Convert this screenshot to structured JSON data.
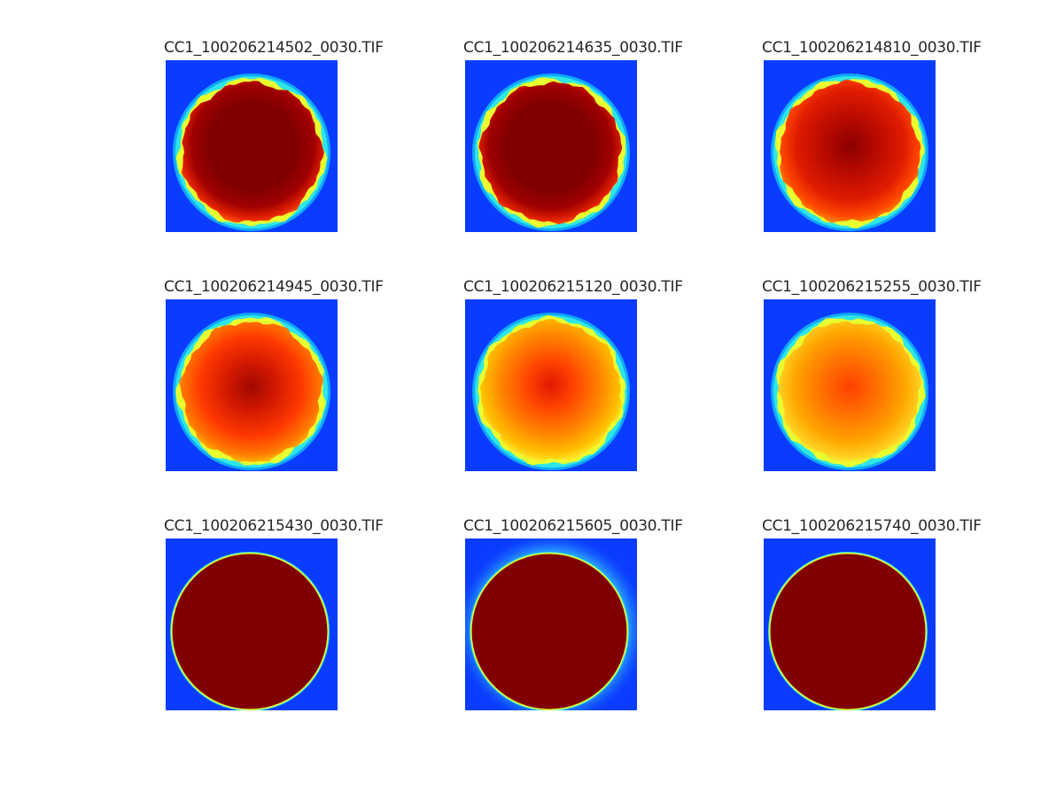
{
  "figure": {
    "panels": [
      {
        "title": "CC1_100206214502_0030.TIF",
        "style": "dark-core",
        "rim": "ragged"
      },
      {
        "title": "CC1_100206214635_0030.TIF",
        "style": "dark-core",
        "rim": "ragged"
      },
      {
        "title": "CC1_100206214810_0030.TIF",
        "style": "red-mottled",
        "rim": "ragged"
      },
      {
        "title": "CC1_100206214945_0030.TIF",
        "style": "red-orange",
        "rim": "ragged"
      },
      {
        "title": "CC1_100206215120_0030.TIF",
        "style": "orange-yellow",
        "rim": "ragged"
      },
      {
        "title": "CC1_100206215255_0030.TIF",
        "style": "yellow-orange",
        "rim": "ragged"
      },
      {
        "title": "CC1_100206215430_0030.TIF",
        "style": "saturated",
        "rim": "thin"
      },
      {
        "title": "CC1_100206215605_0030.TIF",
        "style": "saturated",
        "rim": "thin-halo"
      },
      {
        "title": "CC1_100206215740_0030.TIF",
        "style": "saturated",
        "rim": "thin"
      }
    ],
    "colors": {
      "background": "#0a3cff",
      "rim_cyan": "#2ee6e6",
      "rim_yellow": "#e8ff30",
      "saturated": "#800000"
    }
  }
}
